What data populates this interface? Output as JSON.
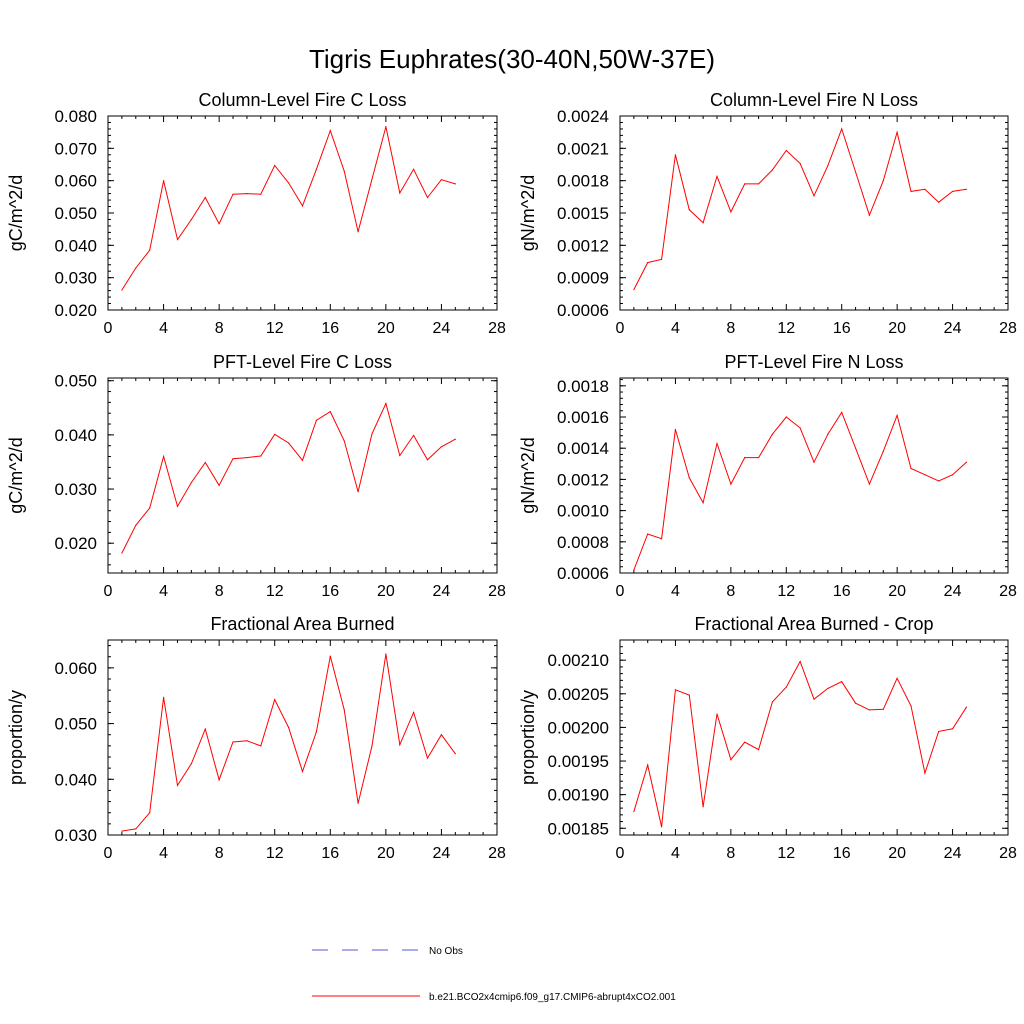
{
  "title": "Tigris Euphrates(30-40N,50W-37E)",
  "legend": {
    "obs_label": "No Obs",
    "obs_color": "#5a5ad8",
    "model_label": "b.e21.BCO2x4cmip6.f09_g17.CMIP6-abrupt4xCO2.001",
    "model_color": "#ff0000"
  },
  "chart_data": [
    {
      "type": "line",
      "title": "Column-Level Fire C Loss",
      "ylabel": "gC/m^2/d",
      "xlabel": "",
      "xlim": [
        0,
        28
      ],
      "xticks": [
        0,
        4,
        8,
        12,
        16,
        20,
        24,
        28
      ],
      "ylim": [
        0.02,
        0.08
      ],
      "yticks": [
        0.02,
        0.03,
        0.04,
        0.05,
        0.06,
        0.07,
        0.08
      ],
      "ytick_labels": [
        "0.020",
        "0.030",
        "0.040",
        "0.050",
        "0.060",
        "0.070",
        "0.080"
      ],
      "x": [
        1,
        2,
        3,
        4,
        5,
        6,
        7,
        8,
        9,
        10,
        11,
        12,
        13,
        14,
        15,
        16,
        17,
        18,
        19,
        20,
        21,
        22,
        23,
        24,
        25
      ],
      "values": [
        0.0262,
        0.033,
        0.0385,
        0.06,
        0.0418,
        0.048,
        0.0548,
        0.0467,
        0.0558,
        0.056,
        0.0558,
        0.0647,
        0.0593,
        0.0522,
        0.0635,
        0.0755,
        0.063,
        0.0442,
        0.0605,
        0.0767,
        0.0562,
        0.0635,
        0.0548,
        0.0603,
        0.059
      ]
    },
    {
      "type": "line",
      "title": "Column-Level Fire N Loss",
      "ylabel": "gN/m^2/d",
      "xlabel": "",
      "xlim": [
        0,
        28
      ],
      "xticks": [
        0,
        4,
        8,
        12,
        16,
        20,
        24,
        28
      ],
      "ylim": [
        0.0006,
        0.0024
      ],
      "yticks": [
        0.0006,
        0.0009,
        0.0012,
        0.0015,
        0.0018,
        0.0021,
        0.0024
      ],
      "ytick_labels": [
        "0.0006",
        "0.0009",
        "0.0012",
        "0.0015",
        "0.0018",
        "0.0021",
        "0.0024"
      ],
      "x": [
        1,
        2,
        3,
        4,
        5,
        6,
        7,
        8,
        9,
        10,
        11,
        12,
        13,
        14,
        15,
        16,
        17,
        18,
        19,
        20,
        21,
        22,
        23,
        24,
        25
      ],
      "values": [
        0.00079,
        0.00104,
        0.00107,
        0.00204,
        0.00153,
        0.00141,
        0.00184,
        0.00151,
        0.00177,
        0.00177,
        0.0019,
        0.00208,
        0.00196,
        0.00166,
        0.00194,
        0.00228,
        0.00188,
        0.00148,
        0.0018,
        0.00225,
        0.0017,
        0.00172,
        0.0016,
        0.0017,
        0.00172
      ]
    },
    {
      "type": "line",
      "title": "PFT-Level Fire C Loss",
      "ylabel": "gC/m^2/d",
      "xlabel": "",
      "xlim": [
        0,
        28
      ],
      "xticks": [
        0,
        4,
        8,
        12,
        16,
        20,
        24,
        28
      ],
      "ylim": [
        0.0145,
        0.0505
      ],
      "yticks": [
        0.02,
        0.03,
        0.04,
        0.05
      ],
      "ytick_labels": [
        "0.020",
        "0.030",
        "0.040",
        "0.050"
      ],
      "x": [
        1,
        2,
        3,
        4,
        5,
        6,
        7,
        8,
        9,
        10,
        11,
        12,
        13,
        14,
        15,
        16,
        17,
        18,
        19,
        20,
        21,
        22,
        23,
        24,
        25
      ],
      "values": [
        0.0182,
        0.0233,
        0.0265,
        0.036,
        0.0268,
        0.0312,
        0.0349,
        0.0307,
        0.0356,
        0.0358,
        0.0361,
        0.0401,
        0.0385,
        0.0353,
        0.0427,
        0.0443,
        0.0389,
        0.0295,
        0.0402,
        0.0458,
        0.0362,
        0.0399,
        0.0354,
        0.0378,
        0.0392
      ]
    },
    {
      "type": "line",
      "title": "PFT-Level Fire N Loss",
      "ylabel": "gN/m^2/d",
      "xlabel": "",
      "xlim": [
        0,
        28
      ],
      "xticks": [
        0,
        4,
        8,
        12,
        16,
        20,
        24,
        28
      ],
      "ylim": [
        0.0006,
        0.00185
      ],
      "yticks": [
        0.0006,
        0.0008,
        0.001,
        0.0012,
        0.0014,
        0.0016,
        0.0018
      ],
      "ytick_labels": [
        "0.0006",
        "0.0008",
        "0.0010",
        "0.0012",
        "0.0014",
        "0.0016",
        "0.0018"
      ],
      "x": [
        1,
        2,
        3,
        4,
        5,
        6,
        7,
        8,
        9,
        10,
        11,
        12,
        13,
        14,
        15,
        16,
        17,
        18,
        19,
        20,
        21,
        22,
        23,
        24,
        25
      ],
      "values": [
        0.00062,
        0.00085,
        0.00082,
        0.00152,
        0.00121,
        0.00105,
        0.00143,
        0.00117,
        0.00134,
        0.00134,
        0.00149,
        0.0016,
        0.00153,
        0.00131,
        0.00149,
        0.00163,
        0.0014,
        0.00117,
        0.00138,
        0.00161,
        0.00127,
        0.00123,
        0.00119,
        0.00123,
        0.00131
      ]
    },
    {
      "type": "line",
      "title": "Fractional Area Burned",
      "ylabel": "proportion/y",
      "xlabel": "",
      "xlim": [
        0,
        28
      ],
      "xticks": [
        0,
        4,
        8,
        12,
        16,
        20,
        24,
        28
      ],
      "ylim": [
        0.03,
        0.065
      ],
      "yticks": [
        0.03,
        0.04,
        0.05,
        0.06
      ],
      "ytick_labels": [
        "0.030",
        "0.040",
        "0.050",
        "0.060"
      ],
      "x": [
        1,
        2,
        3,
        4,
        5,
        6,
        7,
        8,
        9,
        10,
        11,
        12,
        13,
        14,
        15,
        16,
        17,
        18,
        19,
        20,
        21,
        22,
        23,
        24,
        25
      ],
      "values": [
        0.0307,
        0.0311,
        0.034,
        0.0547,
        0.0389,
        0.0428,
        0.049,
        0.0399,
        0.0467,
        0.0469,
        0.046,
        0.0543,
        0.0493,
        0.0414,
        0.0485,
        0.0621,
        0.0525,
        0.0357,
        0.046,
        0.0625,
        0.0462,
        0.052,
        0.0438,
        0.048,
        0.0446
      ]
    },
    {
      "type": "line",
      "title": "Fractional Area Burned - Crop",
      "ylabel": "proportion/y",
      "xlabel": "",
      "xlim": [
        0,
        28
      ],
      "xticks": [
        0,
        4,
        8,
        12,
        16,
        20,
        24,
        28
      ],
      "ylim": [
        0.00184,
        0.00213
      ],
      "yticks": [
        0.00185,
        0.0019,
        0.00195,
        0.002,
        0.00205,
        0.0021
      ],
      "ytick_labels": [
        "0.00185",
        "0.00190",
        "0.00195",
        "0.00200",
        "0.00205",
        "0.00210"
      ],
      "x": [
        1,
        2,
        3,
        4,
        5,
        6,
        7,
        8,
        9,
        10,
        11,
        12,
        13,
        14,
        15,
        16,
        17,
        18,
        19,
        20,
        21,
        22,
        23,
        24,
        25
      ],
      "values": [
        0.001875,
        0.001944,
        0.001852,
        0.002056,
        0.002048,
        0.001882,
        0.00202,
        0.001952,
        0.001978,
        0.001967,
        0.002038,
        0.00206,
        0.002098,
        0.002042,
        0.002058,
        0.002068,
        0.002036,
        0.002026,
        0.002027,
        0.002073,
        0.002032,
        0.001932,
        0.001994,
        0.001998,
        0.00203
      ]
    }
  ]
}
